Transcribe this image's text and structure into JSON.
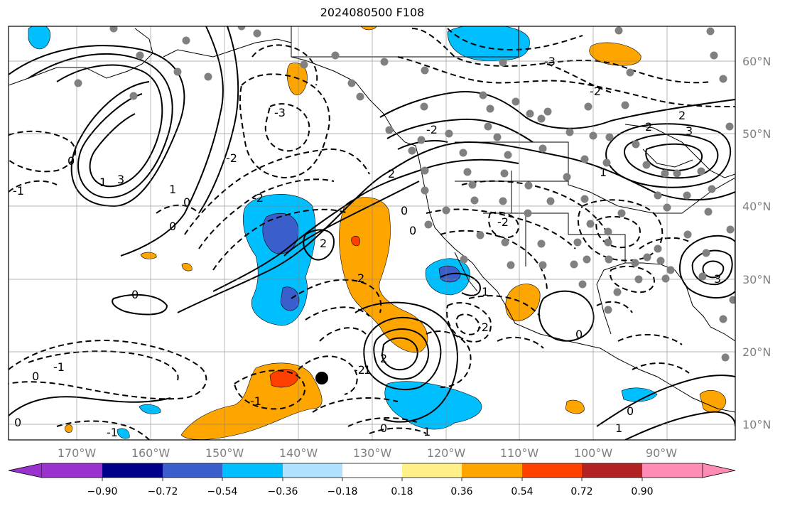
{
  "title": "2024080500 F108",
  "lon_labels": [
    "170°W",
    "160°W",
    "150°W",
    "140°W",
    "130°W",
    "120°W",
    "110°W",
    "100°W",
    "90°W"
  ],
  "lat_labels": [
    "60°N",
    "50°N",
    "40°N",
    "30°N",
    "20°N",
    "10°N"
  ],
  "colorbar": {
    "ticks": [
      "−0.90",
      "−0.72",
      "−0.54",
      "−0.36",
      "−0.18",
      "0.18",
      "0.36",
      "0.54",
      "0.72",
      "0.90"
    ],
    "colors": [
      "#9a32cd",
      "#00008b",
      "#3a5fcd",
      "#00bfff",
      "#b0e2ff",
      "#ffffff",
      "#fff08a",
      "#ffa500",
      "#ff4000",
      "#b22222",
      "#ff8cb4"
    ]
  },
  "contour_labels": [
    "0",
    "-1",
    "-2",
    "-3",
    "0",
    "1",
    "2",
    "3",
    "-2",
    "0",
    "-2",
    "2",
    "0",
    "-1",
    "-2",
    "0",
    "0",
    "-1",
    "0",
    "0",
    "-1",
    "-2",
    "-3",
    "-2",
    "3",
    "2",
    "1",
    "0",
    "0",
    "1",
    "-2",
    "-2",
    "0",
    "1",
    "0",
    "-2",
    "2",
    "0",
    "-1",
    "1"
  ],
  "storm_marker": "black-dot"
}
